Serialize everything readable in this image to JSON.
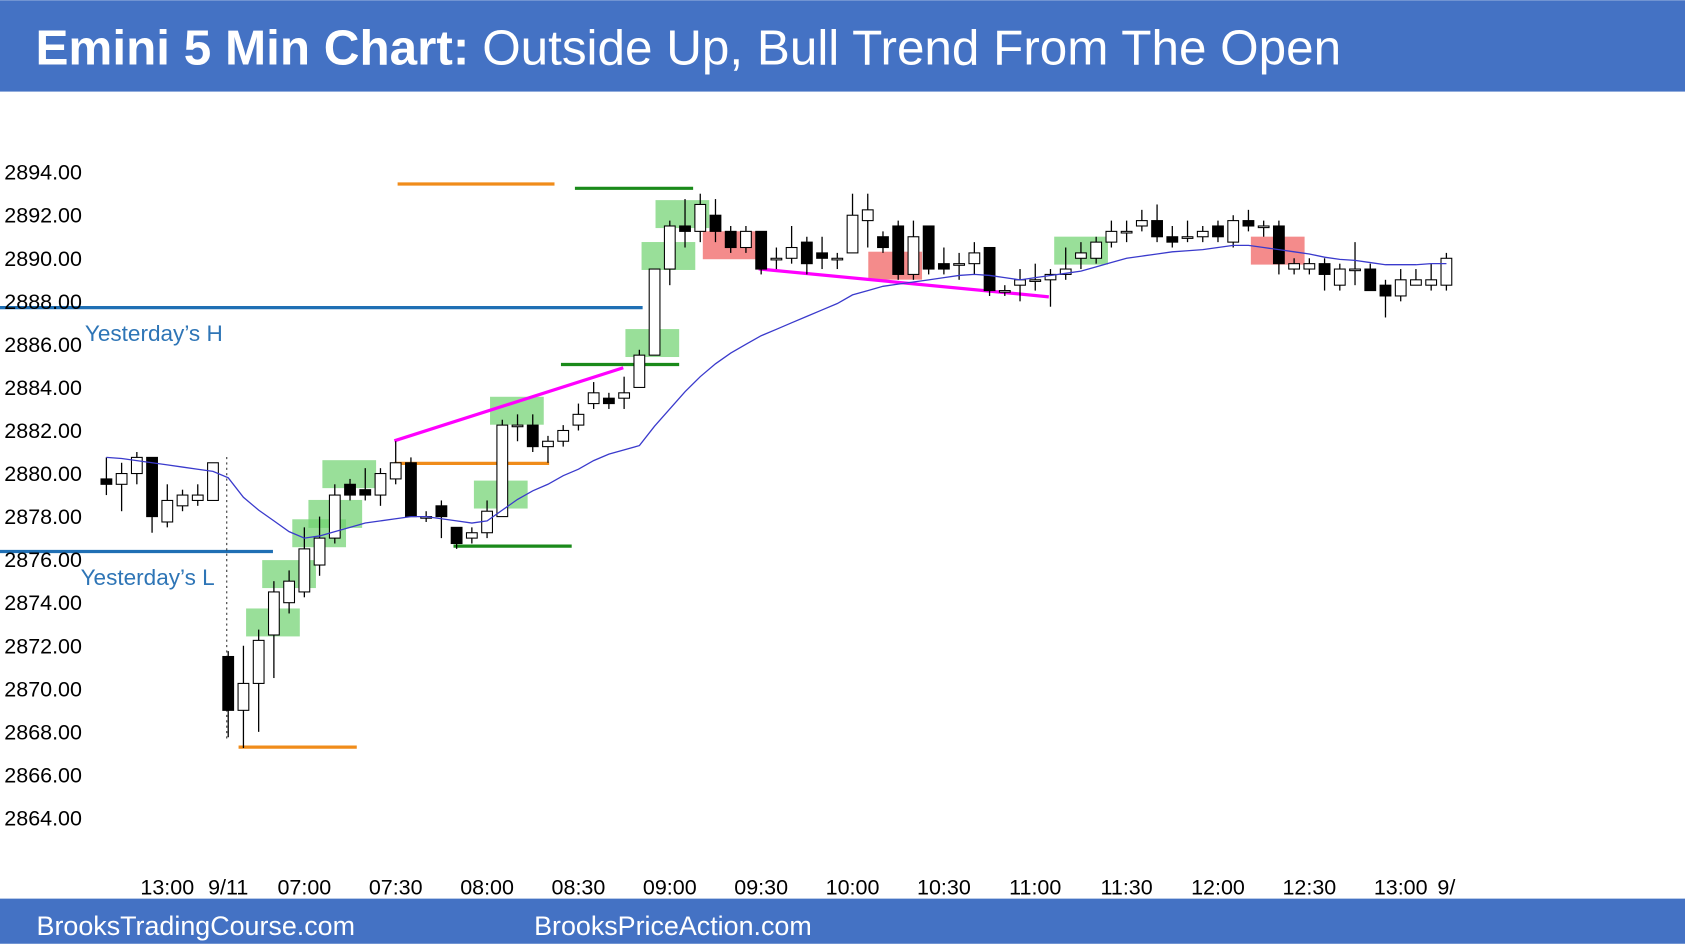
{
  "chart_data": {
    "type": "candlestick",
    "title": "Emini 5 Min Chart:",
    "subtitle": "Outside Up, Bull Trend From The Open",
    "annotations": [
      "Yesterday’s H",
      "Yesterday’s L"
    ],
    "footer": [
      "BrooksTradingCourse.com",
      "BrooksPriceAction.com"
    ],
    "categories": [
      null,
      null,
      null,
      null,
      "13:00",
      null,
      null,
      null,
      "9/11",
      null,
      null,
      null,
      null,
      "07:00",
      null,
      null,
      null,
      null,
      null,
      "07:30",
      null,
      null,
      null,
      null,
      null,
      "08:00",
      null,
      null,
      null,
      null,
      null,
      "08:30",
      null,
      null,
      null,
      null,
      null,
      "09:00",
      null,
      null,
      null,
      null,
      null,
      "09:30",
      null,
      null,
      null,
      null,
      null,
      "10:00",
      null,
      null,
      null,
      null,
      null,
      "10:30",
      null,
      null,
      null,
      null,
      null,
      "11:00",
      null,
      null,
      null,
      null,
      null,
      "11:30",
      null,
      null,
      null,
      null,
      null,
      "12:00",
      null,
      null,
      null,
      null,
      null,
      "12:30",
      null,
      null,
      null,
      null,
      null,
      "13:00",
      null,
      null,
      "9/"
    ],
    "open": [
      2879.75,
      2879.5,
      2880,
      2880.75,
      2877.75,
      2878.5,
      2878.75,
      2878.75,
      2871.5,
      2869,
      2870.25,
      2872.5,
      2874,
      2874.5,
      2875.75,
      2877,
      2879.5,
      2879.25,
      2879,
      2879.75,
      2880.5,
      2878,
      2878.5,
      2877.5,
      2877,
      2877.25,
      2878,
      2882.25,
      2882.25,
      2881.25,
      2881.5,
      2882.25,
      2883.25,
      2883.5,
      2883.5,
      2884,
      2885.5,
      2889.5,
      2891.5,
      2891.25,
      2892,
      2891.25,
      2890.5,
      2891.25,
      2890,
      2890,
      2890.75,
      2890.25,
      2890,
      2890.25,
      2891.75,
      2891,
      2891.5,
      2889.25,
      2891.5,
      2889.75,
      2889.75,
      2889.75,
      2890.5,
      2888.5,
      2888.75,
      2889,
      2889,
      2889.25,
      2890,
      2890,
      2890.75,
      2891.25,
      2891.5,
      2891.75,
      2891,
      2891,
      2891,
      2891.5,
      2890.75,
      2891.75,
      2891.5,
      2891.5,
      2889.5,
      2889.5,
      2889.75,
      2888.75,
      2889.5,
      2889.5,
      2888.75,
      2888.25,
      2888.75,
      2888.75,
      2888.75
    ],
    "high": [
      2880.75,
      2880.5,
      2881,
      2880.75,
      2879.5,
      2879.25,
      2879.5,
      2880.5,
      2871.75,
      2872,
      2872.75,
      2875,
      2875.5,
      2877.5,
      2878,
      2879.5,
      2879.75,
      2880.25,
      2880.25,
      2881.5,
      2880.75,
      2878.25,
      2878.75,
      2877.5,
      2877.5,
      2878.75,
      2882.5,
      2882.75,
      2882.75,
      2881.75,
      2882.25,
      2883.25,
      2884.25,
      2883.75,
      2884.5,
      2885.75,
      2889.5,
      2891.75,
      2892.75,
      2893,
      2892.75,
      2891.5,
      2891.5,
      2891.25,
      2890.5,
      2891.5,
      2891,
      2891,
      2890.25,
      2893,
      2893,
      2891.25,
      2891.75,
      2891.75,
      2891.5,
      2890.5,
      2890.25,
      2890.75,
      2890.5,
      2888.75,
      2889.5,
      2889.75,
      2889.5,
      2890.5,
      2890.75,
      2891,
      2891.75,
      2891.75,
      2892.25,
      2892.5,
      2891.5,
      2891.75,
      2891.5,
      2891.75,
      2892,
      2892.25,
      2891.75,
      2891.75,
      2890,
      2890,
      2890,
      2889.75,
      2890.75,
      2889.75,
      2889,
      2889.5,
      2889.5,
      2889.75,
      2890.25
    ],
    "low": [
      2879,
      2878.25,
      2879.5,
      2877.25,
      2877.5,
      2878.25,
      2878.5,
      2878.75,
      2867.75,
      2867.25,
      2868,
      2870.5,
      2873.5,
      2874.25,
      2875.25,
      2876.75,
      2878.75,
      2878.75,
      2878.5,
      2879.5,
      2878,
      2877.75,
      2877,
      2876.5,
      2876.75,
      2877,
      2878,
      2881.5,
      2881,
      2880.5,
      2881.25,
      2882,
      2883,
      2883,
      2883,
      2884,
      2885.5,
      2888.75,
      2890.5,
      2890.75,
      2890.75,
      2890.25,
      2890.25,
      2889.25,
      2889.5,
      2889.75,
      2889.25,
      2889.5,
      2889.5,
      2890.25,
      2890.5,
      2890.25,
      2889,
      2889,
      2889.25,
      2889.25,
      2889,
      2889.25,
      2888.25,
      2888.25,
      2888,
      2888.5,
      2887.75,
      2889,
      2889.5,
      2889.75,
      2890.5,
      2890.75,
      2891.25,
      2890.75,
      2890.5,
      2890.75,
      2890.75,
      2890.75,
      2890.5,
      2891.25,
      2891,
      2889.25,
      2889.25,
      2889.25,
      2888.5,
      2888.5,
      2888.75,
      2888.5,
      2887.25,
      2888,
      2888.75,
      2888.5,
      2888.5
    ],
    "close": [
      2879.5,
      2880,
      2880.75,
      2878,
      2878.75,
      2879,
      2879,
      2880.5,
      2869,
      2870.25,
      2872.25,
      2874.5,
      2875,
      2876.5,
      2877,
      2879,
      2879,
      2879,
      2880,
      2880.5,
      2878,
      2878,
      2878,
      2876.75,
      2877.25,
      2878.25,
      2882.25,
      2882.25,
      2881.25,
      2881.5,
      2882,
      2882.75,
      2883.75,
      2883.25,
      2883.75,
      2885.5,
      2889.5,
      2891.5,
      2891.25,
      2892.5,
      2891.25,
      2890.5,
      2891.25,
      2889.5,
      2890,
      2890.5,
      2889.75,
      2890,
      2890,
      2892,
      2892.25,
      2890.5,
      2889.25,
      2891,
      2889.5,
      2889.5,
      2889.75,
      2890.25,
      2888.5,
      2888.5,
      2889,
      2889,
      2889.25,
      2889.5,
      2890.25,
      2890.75,
      2891.25,
      2891.25,
      2891.75,
      2891,
      2890.75,
      2891,
      2891.25,
      2891,
      2891.75,
      2891.5,
      2891.5,
      2889.75,
      2889.75,
      2889.75,
      2889.25,
      2889.5,
      2889.5,
      2888.5,
      2888.25,
      2889,
      2889,
      2889,
      2890
    ],
    "up_color": "#ffffff",
    "down_color": "#000000",
    "overlay": {
      "color": "#3a3acc",
      "values": [
        2880.75,
        2880.7,
        2880.6,
        2880.5,
        2880.4,
        2880.3,
        2880.2,
        2880.1,
        2879.8,
        2878.9,
        2878.3,
        2877.8,
        2877.3,
        2877,
        2877.1,
        2877.3,
        2877.5,
        2877.7,
        2877.8,
        2877.9,
        2878,
        2878,
        2877.9,
        2877.8,
        2877.7,
        2877.8,
        2878.3,
        2878.8,
        2879.2,
        2879.5,
        2879.9,
        2880.2,
        2880.6,
        2880.9,
        2881.1,
        2881.3,
        2882.2,
        2883,
        2883.8,
        2884.5,
        2885.1,
        2885.6,
        2886,
        2886.4,
        2886.7,
        2887,
        2887.3,
        2887.6,
        2887.9,
        2888.3,
        2888.5,
        2888.7,
        2888.8,
        2888.9,
        2889,
        2889.1,
        2889.2,
        2889.25,
        2889.2,
        2889.1,
        2889,
        2889.1,
        2889.2,
        2889.3,
        2889.4,
        2889.6,
        2889.8,
        2890,
        2890.1,
        2890.2,
        2890.3,
        2890.35,
        2890.4,
        2890.5,
        2890.6,
        2890.6,
        2890.5,
        2890.4,
        2890.3,
        2890.2,
        2890.05,
        2889.95,
        2889.9,
        2889.8,
        2889.7,
        2889.7,
        2889.7,
        2889.75,
        2889.75
      ]
    },
    "ylim": [
      2862,
      2897
    ],
    "yticks": [
      {
        "value": 2864,
        "label": "2864.00"
      },
      {
        "value": 2866,
        "label": "2866.00"
      },
      {
        "value": 2868,
        "label": "2868.00"
      },
      {
        "value": 2870,
        "label": "2870.00"
      },
      {
        "value": 2872,
        "label": "2872.00"
      },
      {
        "value": 2874,
        "label": "2874.00"
      },
      {
        "value": 2876,
        "label": "2876.00"
      },
      {
        "value": 2878,
        "label": "2878.00"
      },
      {
        "value": 2880,
        "label": "2880.00"
      },
      {
        "value": 2882,
        "label": "2882.00"
      },
      {
        "value": 2884,
        "label": "2884.00"
      },
      {
        "value": 2886,
        "label": "2886.00"
      },
      {
        "value": 2888,
        "label": "2888.00"
      },
      {
        "value": 2890,
        "label": "2890.00"
      },
      {
        "value": 2892,
        "label": "2892.00"
      },
      {
        "value": 2894,
        "label": "2894.00"
      }
    ],
    "grid": false
  }
}
